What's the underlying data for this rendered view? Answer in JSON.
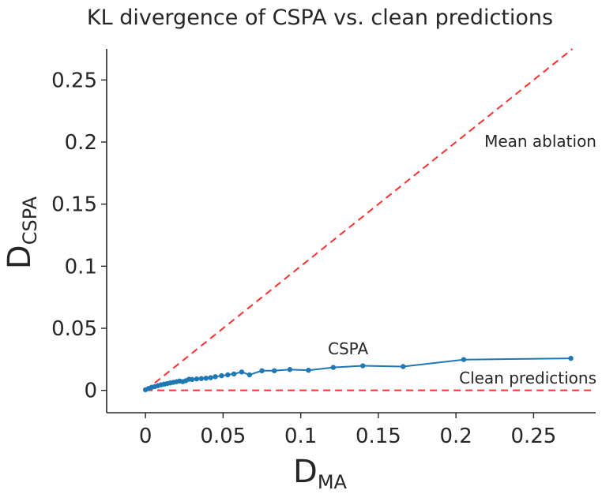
{
  "chart_data": {
    "type": "line",
    "title": "KL divergence of CSPA vs. clean predictions",
    "xlabel_main": "D",
    "xlabel_sub": "MA",
    "ylabel_main": "D",
    "ylabel_sub": "CSPA",
    "xlim": [
      -0.025,
      0.29
    ],
    "ylim": [
      -0.018,
      0.275
    ],
    "xticks": [
      0,
      0.05,
      0.1,
      0.15,
      0.2,
      0.25
    ],
    "xtick_labels": [
      "0",
      "0.05",
      "0.1",
      "0.15",
      "0.2",
      "0.25"
    ],
    "yticks": [
      0,
      0.05,
      0.1,
      0.15,
      0.2,
      0.25
    ],
    "ytick_labels": [
      "0",
      "0.05",
      "0.1",
      "0.15",
      "0.2",
      "0.25"
    ],
    "grid": false,
    "series": [
      {
        "name": "CSPA",
        "color": "#1f77b4",
        "x": [
          0,
          0.002,
          0.004,
          0.006,
          0.008,
          0.01,
          0.012,
          0.014,
          0.016,
          0.018,
          0.02,
          0.022,
          0.024,
          0.026,
          0.028,
          0.03,
          0.033,
          0.036,
          0.039,
          0.042,
          0.045,
          0.049,
          0.053,
          0.057,
          0.062,
          0.067,
          0.075,
          0.083,
          0.093,
          0.105,
          0.121,
          0.14,
          0.166,
          0.205,
          0.274
        ],
        "y": [
          0.0005,
          0.0015,
          0.0025,
          0.003,
          0.0038,
          0.0045,
          0.005,
          0.0055,
          0.006,
          0.0065,
          0.007,
          0.0075,
          0.007,
          0.0078,
          0.009,
          0.0088,
          0.0092,
          0.0095,
          0.0098,
          0.0102,
          0.011,
          0.0118,
          0.0125,
          0.0132,
          0.0148,
          0.0125,
          0.0158,
          0.0158,
          0.0168,
          0.0162,
          0.0185,
          0.0198,
          0.0192,
          0.0248,
          0.0258
        ]
      }
    ],
    "reference_lines": [
      {
        "name": "Mean ablation",
        "type": "diagonal",
        "color": "#ff3333",
        "style": "dashed"
      },
      {
        "name": "Clean predictions",
        "type": "horizontal",
        "y": 0,
        "color": "#ff3333",
        "style": "dashed"
      }
    ],
    "annotations": {
      "mean_ablation": "Mean ablation",
      "clean_predictions": "Clean predictions",
      "cspa": "CSPA"
    }
  }
}
